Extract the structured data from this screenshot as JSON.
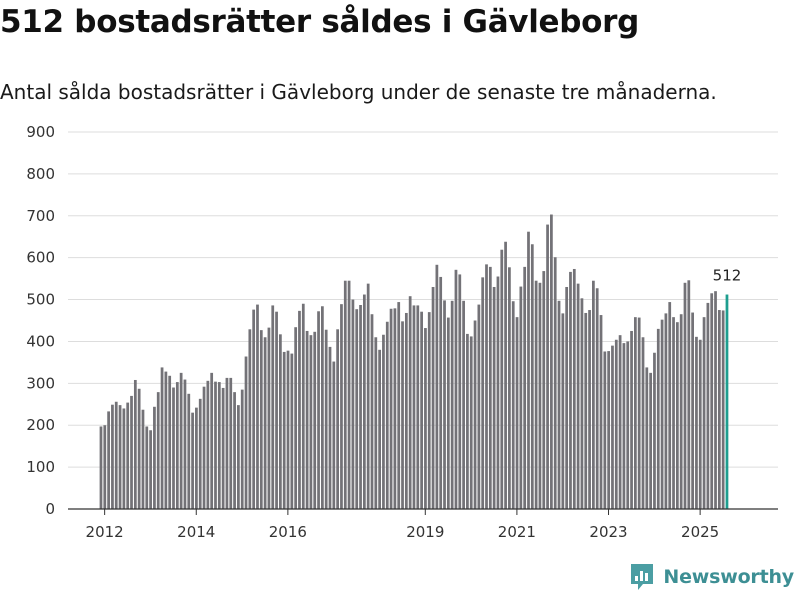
{
  "title": "512 bostadsrätter såldes i Gävleborg",
  "subtitle": "Antal sålda bostadsrätter i Gävleborg under de senaste tre månaderna.",
  "brand": {
    "name": "Newsworthy",
    "icon": "newsworthy-logo-icon"
  },
  "colors": {
    "bar": "#737277",
    "highlight": "#1e9e8f",
    "grid": "#dddddd",
    "axis": "#333333",
    "brand": "#3d8f94"
  },
  "chart_data": {
    "type": "bar",
    "title": "512 bostadsrätter såldes i Gävleborg",
    "subtitle": "Antal sålda bostadsrätter i Gävleborg under de senaste tre månaderna.",
    "xlabel": "",
    "ylabel": "",
    "ylim": [
      0,
      900
    ],
    "yticks": [
      0,
      100,
      200,
      300,
      400,
      500,
      600,
      700,
      800,
      900
    ],
    "xlim": [
      2011.2,
      2026.7
    ],
    "xticks": [
      {
        "label": "2012",
        "value": 2012
      },
      {
        "label": "2014",
        "value": 2014
      },
      {
        "label": "2016",
        "value": 2016
      },
      {
        "label": "2019",
        "value": 2019
      },
      {
        "label": "2021",
        "value": 2021
      },
      {
        "label": "2023",
        "value": 2023
      },
      {
        "label": "2025",
        "value": 2025
      }
    ],
    "grid": true,
    "start": 2011.92,
    "step": 0.08333,
    "values": [
      197,
      200,
      233,
      249,
      256,
      248,
      240,
      254,
      270,
      308,
      287,
      237,
      197,
      188,
      244,
      279,
      338,
      328,
      318,
      290,
      303,
      325,
      309,
      275,
      230,
      242,
      263,
      292,
      306,
      325,
      304,
      303,
      289,
      313,
      313,
      279,
      248,
      285,
      364,
      429,
      476,
      488,
      427,
      410,
      433,
      486,
      471,
      417,
      375,
      378,
      371,
      434,
      473,
      490,
      425,
      415,
      423,
      472,
      484,
      428,
      387,
      352,
      429,
      489,
      545,
      545,
      500,
      477,
      487,
      512,
      538,
      465,
      410,
      380,
      416,
      447,
      478,
      479,
      494,
      448,
      468,
      508,
      486,
      486,
      471,
      432,
      470,
      530,
      583,
      554,
      498,
      457,
      497,
      571,
      560,
      497,
      418,
      412,
      450,
      488,
      553,
      584,
      578,
      530,
      555,
      619,
      638,
      577,
      496,
      458,
      531,
      578,
      662,
      632,
      545,
      540,
      568,
      679,
      703,
      601,
      497,
      467,
      530,
      566,
      573,
      538,
      503,
      468,
      475,
      545,
      527,
      463,
      376,
      377,
      390,
      404,
      415,
      396,
      400,
      425,
      458,
      457,
      410,
      338,
      325,
      373,
      430,
      452,
      467,
      494,
      458,
      446,
      465,
      540,
      546,
      469,
      411,
      404,
      458,
      492,
      515,
      520,
      475,
      474,
      512
    ],
    "highlight_last": true,
    "annotation": {
      "label": "512",
      "value": 512,
      "position": "above-last-bar"
    }
  }
}
